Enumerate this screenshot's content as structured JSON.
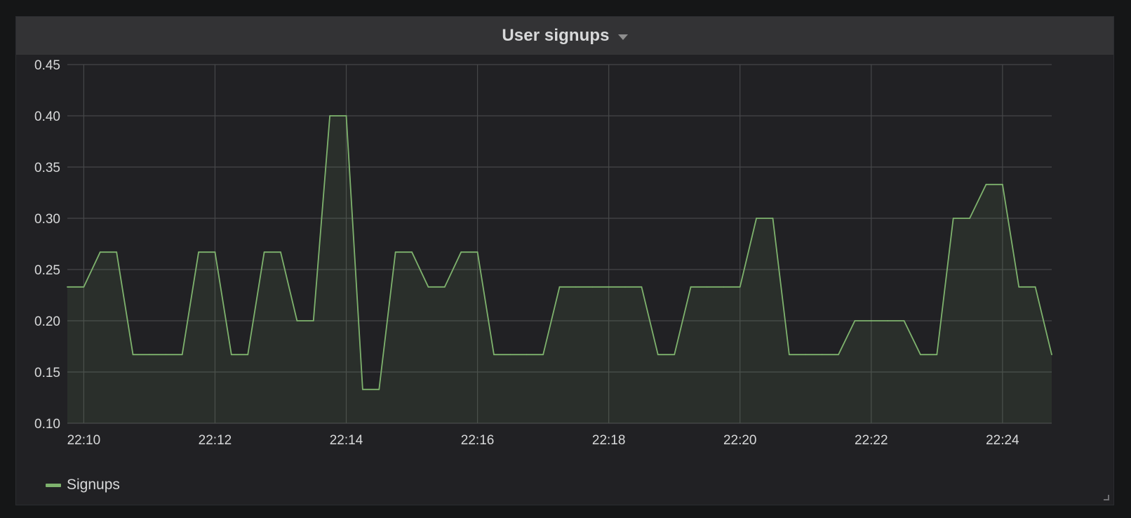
{
  "panel": {
    "title": "User signups"
  },
  "colors": {
    "series": "#7eb26d",
    "grid": "#464749",
    "text": "#d8d9da",
    "fill": "#2d302c"
  },
  "icons": {
    "title_menu": "caret-down-icon",
    "resize": "resize-corner-icon"
  },
  "chart_data": {
    "type": "area",
    "title": "User signups",
    "ylim": [
      0.1,
      0.45
    ],
    "y_ticks": [
      "0.10",
      "0.15",
      "0.20",
      "0.25",
      "0.30",
      "0.35",
      "0.40",
      "0.45"
    ],
    "xlim": [
      "22:09:45",
      "22:24:45"
    ],
    "x_ticks": [
      "22:10",
      "22:12",
      "22:14",
      "22:16",
      "22:18",
      "22:20",
      "22:22",
      "22:24"
    ],
    "grid": true,
    "legend": "bottom-left",
    "series": [
      {
        "name": "Signups",
        "x": [
          "22:09:45",
          "22:10:00",
          "22:10:15",
          "22:10:30",
          "22:10:45",
          "22:11:00",
          "22:11:15",
          "22:11:30",
          "22:11:45",
          "22:12:00",
          "22:12:15",
          "22:12:30",
          "22:12:45",
          "22:13:00",
          "22:13:15",
          "22:13:30",
          "22:13:45",
          "22:14:00",
          "22:14:15",
          "22:14:30",
          "22:14:45",
          "22:15:00",
          "22:15:15",
          "22:15:30",
          "22:15:45",
          "22:16:00",
          "22:16:15",
          "22:16:30",
          "22:16:45",
          "22:17:00",
          "22:17:15",
          "22:17:30",
          "22:17:45",
          "22:18:00",
          "22:18:15",
          "22:18:30",
          "22:18:45",
          "22:19:00",
          "22:19:15",
          "22:19:30",
          "22:19:45",
          "22:20:00",
          "22:20:15",
          "22:20:30",
          "22:20:45",
          "22:21:00",
          "22:21:15",
          "22:21:30",
          "22:21:45",
          "22:22:00",
          "22:22:15",
          "22:22:30",
          "22:22:45",
          "22:23:00",
          "22:23:15",
          "22:23:30",
          "22:23:45",
          "22:24:00",
          "22:24:15",
          "22:24:30",
          "22:24:45"
        ],
        "values": [
          0.233,
          0.233,
          0.267,
          0.267,
          0.167,
          0.167,
          0.167,
          0.167,
          0.267,
          0.267,
          0.167,
          0.167,
          0.267,
          0.267,
          0.2,
          0.2,
          0.4,
          0.4,
          0.133,
          0.133,
          0.267,
          0.267,
          0.233,
          0.233,
          0.267,
          0.267,
          0.167,
          0.167,
          0.167,
          0.167,
          0.233,
          0.233,
          0.233,
          0.233,
          0.233,
          0.233,
          0.167,
          0.167,
          0.233,
          0.233,
          0.233,
          0.233,
          0.3,
          0.3,
          0.167,
          0.167,
          0.167,
          0.167,
          0.2,
          0.2,
          0.2,
          0.2,
          0.167,
          0.167,
          0.3,
          0.3,
          0.333,
          0.333,
          0.233,
          0.233,
          0.167
        ]
      }
    ]
  }
}
